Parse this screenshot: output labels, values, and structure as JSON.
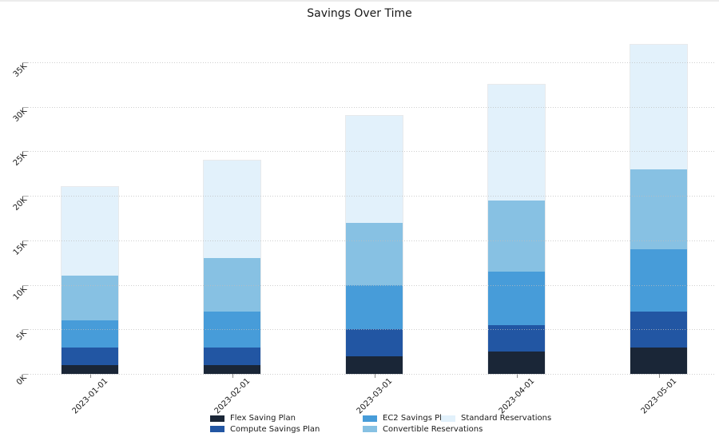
{
  "title": "Savings Over Time",
  "chart_data": {
    "type": "bar",
    "stacked": true,
    "title": "Savings Over Time",
    "xlabel": "",
    "ylabel": "",
    "categories": [
      "2023-01-01",
      "2023-02-01",
      "2023-03-01",
      "2023-04-01",
      "2023-05-01"
    ],
    "series": [
      {
        "name": "Flex Saving Plan",
        "color": "#1A2637",
        "values": [
          1000,
          1000,
          2000,
          2500,
          3000
        ]
      },
      {
        "name": "Compute Savings Plan",
        "color": "#2256A3",
        "values": [
          2000,
          2000,
          3000,
          3000,
          4000
        ]
      },
      {
        "name": "EC2 Savings Plan",
        "color": "#479CD9",
        "values": [
          3000,
          4000,
          5000,
          6000,
          7000
        ]
      },
      {
        "name": "Convertible Reservations",
        "color": "#87C1E3",
        "values": [
          5000,
          6000,
          7000,
          8000,
          9000
        ]
      },
      {
        "name": "Standard Reservations",
        "color": "#E2F1FB",
        "values": [
          10000,
          11000,
          12000,
          13000,
          14000
        ]
      }
    ],
    "totals": [
      21000,
      24000,
      29000,
      32500,
      37000
    ],
    "ylim": [
      0,
      37500
    ],
    "ytick_step": 5000,
    "ytick_labels": [
      "0K",
      "5K",
      "10K",
      "15K",
      "20K",
      "25K",
      "30K",
      "35K"
    ],
    "grid": "horizontal-dotted",
    "tick_label_rotation": 45,
    "legend_position": "bottom",
    "legend_columns": 3
  }
}
